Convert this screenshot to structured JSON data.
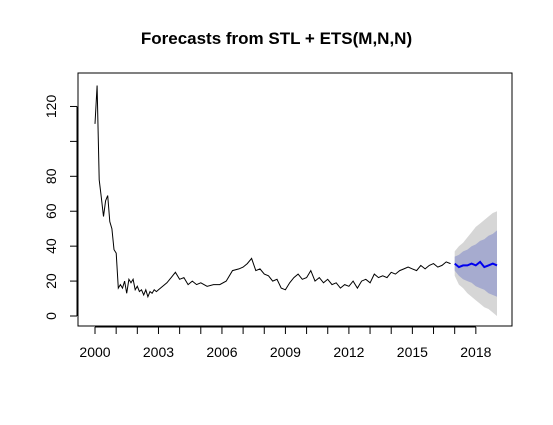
{
  "chart_data": {
    "type": "line",
    "title": "Forecasts from STL +  ETS(M,N,N)",
    "xlabel": "",
    "ylabel": "",
    "xlim": [
      2000,
      2019
    ],
    "ylim": [
      0,
      130
    ],
    "x_ticks": [
      "2000",
      "2003",
      "2006",
      "2009",
      "2012",
      "2015",
      "2018"
    ],
    "y_ticks": [
      "0",
      "20",
      "40",
      "60",
      "80",
      "120"
    ],
    "grid": false,
    "legend": "none",
    "colors": {
      "history": "#000000",
      "forecast": "#0000ee",
      "band_80": "#a6abcf",
      "band_95": "#d6d6d6"
    },
    "series": [
      {
        "kind": "history",
        "x": [
          2000.0,
          2000.1,
          2000.2,
          2000.3,
          2000.4,
          2000.5,
          2000.6,
          2000.7,
          2000.8,
          2000.9,
          2001.0,
          2001.1,
          2001.2,
          2001.3,
          2001.4,
          2001.5,
          2001.6,
          2001.7,
          2001.8,
          2001.9,
          2002.0,
          2002.1,
          2002.2,
          2002.3,
          2002.4,
          2002.5,
          2002.6,
          2002.7,
          2002.8,
          2002.9,
          2003.0,
          2003.2,
          2003.4,
          2003.6,
          2003.8,
          2004.0,
          2004.2,
          2004.4,
          2004.6,
          2004.8,
          2005.0,
          2005.3,
          2005.6,
          2005.9,
          2006.2,
          2006.5,
          2006.8,
          2007.0,
          2007.2,
          2007.4,
          2007.6,
          2007.8,
          2008.0,
          2008.2,
          2008.4,
          2008.6,
          2008.8,
          2009.0,
          2009.2,
          2009.4,
          2009.6,
          2009.8,
          2010.0,
          2010.2,
          2010.4,
          2010.6,
          2010.8,
          2011.0,
          2011.2,
          2011.4,
          2011.6,
          2011.8,
          2012.0,
          2012.2,
          2012.4,
          2012.6,
          2012.8,
          2013.0,
          2013.2,
          2013.4,
          2013.6,
          2013.8,
          2014.0,
          2014.2,
          2014.4,
          2014.6,
          2014.8,
          2015.0,
          2015.2,
          2015.4,
          2015.6,
          2015.8,
          2016.0,
          2016.2,
          2016.4,
          2016.6,
          2016.8
        ],
        "y": [
          110,
          132,
          78,
          68,
          57,
          66,
          69,
          54,
          50,
          38,
          36,
          16,
          18,
          16,
          20,
          13,
          21,
          19,
          21,
          15,
          17,
          14,
          15,
          12,
          15,
          11,
          14,
          13,
          15,
          14,
          15,
          17,
          19,
          22,
          25,
          21,
          22,
          18,
          20,
          18,
          19,
          17,
          18,
          18,
          20,
          26,
          27,
          28,
          30,
          33,
          26,
          27,
          24,
          23,
          20,
          21,
          16,
          15,
          19,
          22,
          24,
          21,
          22,
          26,
          20,
          22,
          19,
          21,
          18,
          19,
          16,
          18,
          17,
          20,
          16,
          20,
          21,
          19,
          24,
          22,
          23,
          22,
          25,
          24,
          26,
          27,
          28,
          27,
          26,
          29,
          27,
          29,
          30,
          28,
          29,
          31,
          30
        ]
      },
      {
        "kind": "forecast",
        "x": [
          2017.0,
          2017.2,
          2017.4,
          2017.6,
          2017.8,
          2018.0,
          2018.2,
          2018.4,
          2018.6,
          2018.8,
          2019.0
        ],
        "y": [
          30,
          28,
          29,
          29,
          30,
          29,
          31,
          28,
          29,
          30,
          29
        ],
        "lo80": [
          26,
          23,
          21,
          20,
          19,
          17,
          16,
          15,
          13,
          12,
          11
        ],
        "hi80": [
          34,
          35,
          37,
          38,
          40,
          41,
          43,
          44,
          46,
          47,
          49
        ],
        "lo95": [
          23,
          18,
          16,
          13,
          11,
          9,
          7,
          5,
          4,
          2,
          0
        ],
        "hi95": [
          37,
          40,
          42,
          45,
          48,
          51,
          53,
          55,
          57,
          59,
          60
        ]
      }
    ]
  }
}
